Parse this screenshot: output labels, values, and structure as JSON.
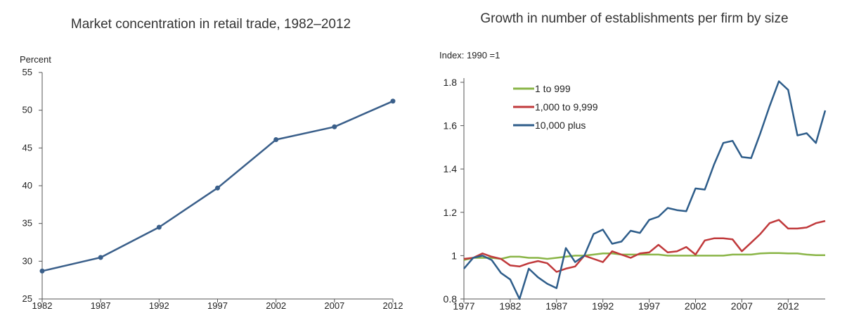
{
  "chart_data": [
    {
      "type": "line",
      "title": "Market concentration in retail trade, 1982–2012",
      "ylabel": "Percent",
      "xlabel": "",
      "x": [
        1982,
        1987,
        1992,
        1997,
        2002,
        2007,
        2012
      ],
      "series": [
        {
          "values": [
            28.7,
            30.5,
            34.5,
            39.7,
            46.1,
            47.8,
            51.2
          ],
          "color": "#3a5f8a"
        }
      ],
      "xlim": [
        1982,
        2012
      ],
      "ylim": [
        25,
        55
      ],
      "xticks": [
        "1982",
        "1987",
        "1992",
        "1997",
        "2002",
        "2007",
        "2012"
      ],
      "yticks": [
        "25",
        "30",
        "35",
        "40",
        "45",
        "50",
        "55"
      ],
      "markers": true,
      "grid": false
    },
    {
      "type": "line",
      "title": "Growth in number of establishments per firm by size",
      "ylabel": "Index: 1990 =1",
      "xlabel": "",
      "x": [
        1977,
        1978,
        1979,
        1980,
        1981,
        1982,
        1983,
        1984,
        1985,
        1986,
        1987,
        1988,
        1989,
        1990,
        1991,
        1992,
        1993,
        1994,
        1995,
        1996,
        1997,
        1998,
        1999,
        2000,
        2001,
        2002,
        2003,
        2004,
        2005,
        2006,
        2007,
        2008,
        2009,
        2010,
        2011,
        2012,
        2013,
        2014,
        2015,
        2016
      ],
      "series": [
        {
          "name": "1 to 999",
          "color": "#8ab547",
          "values": [
            0.98,
            0.99,
            0.99,
            0.99,
            0.985,
            0.995,
            0.995,
            0.99,
            0.99,
            0.985,
            0.99,
            0.995,
            1.0,
            1.0,
            1.005,
            1.01,
            1.01,
            1.005,
            1.005,
            1.005,
            1.005,
            1.005,
            1.0,
            1.0,
            1.0,
            1.0,
            1.0,
            1.0,
            1.0,
            1.005,
            1.005,
            1.005,
            1.01,
            1.012,
            1.012,
            1.01,
            1.01,
            1.005,
            1.002,
            1.002
          ]
        },
        {
          "name": "1,000 to 9,999",
          "color": "#c0393b",
          "values": [
            0.985,
            0.99,
            1.01,
            0.995,
            0.985,
            0.955,
            0.95,
            0.965,
            0.975,
            0.965,
            0.925,
            0.94,
            0.95,
            1.0,
            0.985,
            0.97,
            1.02,
            1.005,
            0.99,
            1.01,
            1.015,
            1.05,
            1.015,
            1.02,
            1.04,
            1.005,
            1.07,
            1.08,
            1.08,
            1.075,
            1.02,
            1.06,
            1.1,
            1.15,
            1.165,
            1.125,
            1.125,
            1.13,
            1.15,
            1.16
          ]
        },
        {
          "name": "10,000 plus",
          "color": "#2e5d8a",
          "values": [
            0.94,
            0.99,
            1.0,
            0.98,
            0.92,
            0.89,
            0.8,
            0.94,
            0.9,
            0.87,
            0.85,
            1.035,
            0.97,
            1.0,
            1.1,
            1.12,
            1.055,
            1.065,
            1.115,
            1.105,
            1.165,
            1.18,
            1.22,
            1.21,
            1.205,
            1.31,
            1.305,
            1.42,
            1.52,
            1.53,
            1.455,
            1.45,
            1.565,
            1.69,
            1.805,
            1.765,
            1.555,
            1.565,
            1.52,
            1.67
          ]
        }
      ],
      "xlim": [
        1977,
        2016
      ],
      "ylim": [
        0.8,
        1.8
      ],
      "xticks": [
        "1977",
        "1982",
        "1987",
        "1992",
        "1997",
        "2002",
        "2007",
        "2012"
      ],
      "yticks": [
        "0.8",
        "1",
        "1.2",
        "1.4",
        "1.6",
        "1.8"
      ],
      "legend": "top-left",
      "grid": false
    }
  ]
}
